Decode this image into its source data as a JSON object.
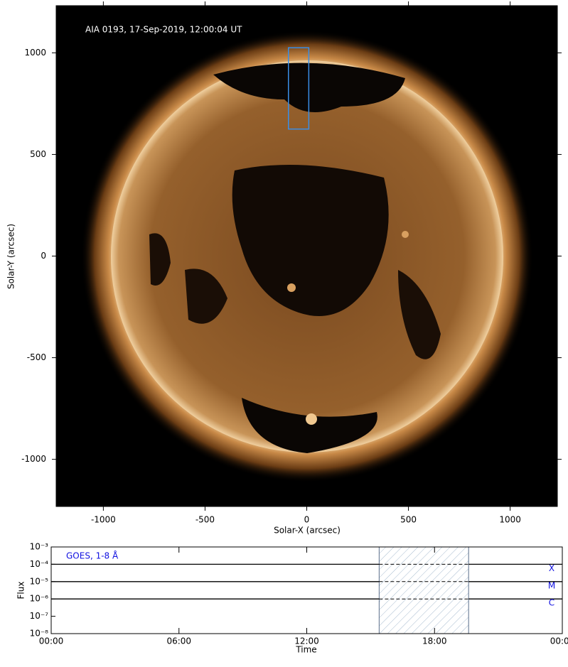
{
  "chart_data": [
    {
      "type": "image",
      "title": "AIA 0193, 17-Sep-2019, 12:00:04 UT",
      "xlabel": "Solar-X (arcsec)",
      "ylabel": "Solar-Y (arcsec)",
      "xlim": [
        -1232,
        1232
      ],
      "ylim": [
        -1232,
        1232
      ],
      "xticks": [
        -1000,
        -500,
        0,
        500,
        1000
      ],
      "yticks": [
        -1000,
        -500,
        0,
        500,
        1000
      ],
      "box": {
        "x": [
          -90,
          10
        ],
        "y": [
          625,
          1025
        ],
        "color": "#3a8ee6"
      }
    },
    {
      "type": "line",
      "label": "GOES, 1-8 Å",
      "label_color": "#1010e0",
      "xlabel": "Time",
      "ylabel": "Flux",
      "log_scale": true,
      "xlim": [
        0,
        24
      ],
      "xticks": [
        {
          "value": 0,
          "label": "00:00"
        },
        {
          "value": 6,
          "label": "06:00"
        },
        {
          "value": 12,
          "label": "12:00"
        },
        {
          "value": 18,
          "label": "18:00"
        },
        {
          "value": 24,
          "label": "00:00"
        }
      ],
      "ylim": [
        1e-08,
        0.001
      ],
      "yticks": [
        {
          "value": 1e-08,
          "label": "10⁻⁸"
        },
        {
          "value": 1e-07,
          "label": "10⁻⁷"
        },
        {
          "value": 1e-06,
          "label": "10⁻⁶"
        },
        {
          "value": 1e-05,
          "label": "10⁻⁵"
        },
        {
          "value": 0.0001,
          "label": "10⁻⁴"
        },
        {
          "value": 0.001,
          "label": "10⁻³"
        }
      ],
      "flare_levels": [
        {
          "label": "X",
          "value": 0.0001
        },
        {
          "label": "M",
          "value": 1e-05
        },
        {
          "label": "C",
          "value": 1e-06
        }
      ],
      "highlight": [
        15.4,
        19.6
      ]
    }
  ]
}
